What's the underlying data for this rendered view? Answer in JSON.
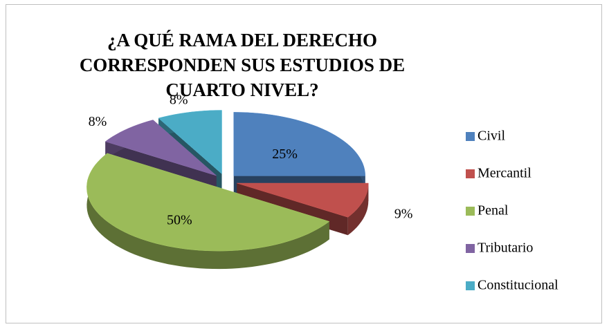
{
  "chart_data": {
    "type": "pie",
    "title": "¿A QUÉ RAMA DEL DERECHO CORRESPONDEN SUS ESTUDIOS DE CUARTO NIVEL?",
    "categories": [
      "Civil",
      "Mercantil",
      "Penal",
      "Tributario",
      "Constitucional"
    ],
    "values": [
      25,
      9,
      50,
      8,
      8
    ],
    "value_labels": [
      "25%",
      "9%",
      "50%",
      "8%",
      "8%"
    ],
    "colors": [
      "#4f81bd",
      "#c0504d",
      "#9bbb59",
      "#8064a2",
      "#4bacc6"
    ],
    "legend": "right"
  }
}
